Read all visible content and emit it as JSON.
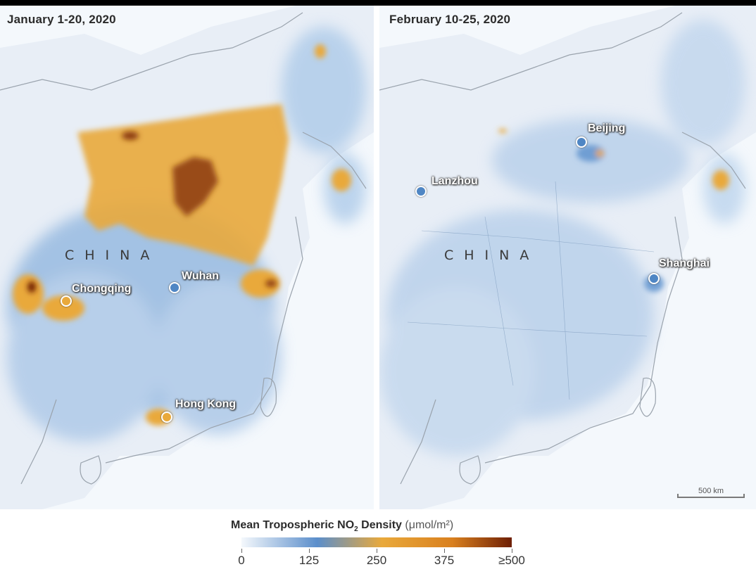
{
  "panels": {
    "left": {
      "title": "January 1-20, 2020",
      "country_label": "CHINA",
      "cities": [
        {
          "name": "Chongqing",
          "marker": "city-marker",
          "no2_level": "high"
        },
        {
          "name": "Wuhan",
          "marker": "city-marker",
          "no2_level": "low"
        },
        {
          "name": "Hong Kong",
          "marker": "city-marker",
          "no2_level": "high"
        }
      ]
    },
    "right": {
      "title": "February 10-25, 2020",
      "country_label": "CHINA",
      "cities": [
        {
          "name": "Beijing",
          "marker": "city-marker",
          "no2_level": "low"
        },
        {
          "name": "Lanzhou",
          "marker": "city-marker",
          "no2_level": "low"
        },
        {
          "name": "Shanghai",
          "marker": "city-marker",
          "no2_level": "low"
        }
      ],
      "scale_bar": "500 km"
    }
  },
  "legend": {
    "title_main": "Mean Tropospheric NO",
    "title_sub": "2",
    "title_rest": " Density ",
    "unit": "(μmol/m²)",
    "ticks": [
      {
        "label": "0",
        "value": 0
      },
      {
        "label": "125",
        "value": 125
      },
      {
        "label": "250",
        "value": 250
      },
      {
        "label": "375",
        "value": 375
      },
      {
        "label": "≥500",
        "value": 500
      }
    ],
    "max_value": 500,
    "colors": {
      "low": "#f4f8fc",
      "mid_low": "#5b8ecb",
      "mid": "#e9a93b",
      "high": "#d9801f",
      "max": "#6e1f05"
    }
  },
  "colors": {
    "ocean": "#f4f8fc",
    "land": "#e9eff7",
    "border": "#9aa3ad",
    "no2_blue": "#8db4de",
    "no2_blue_dark": "#4f86c4",
    "no2_orange": "#e9a93b",
    "no2_dark": "#8b3a0e"
  }
}
